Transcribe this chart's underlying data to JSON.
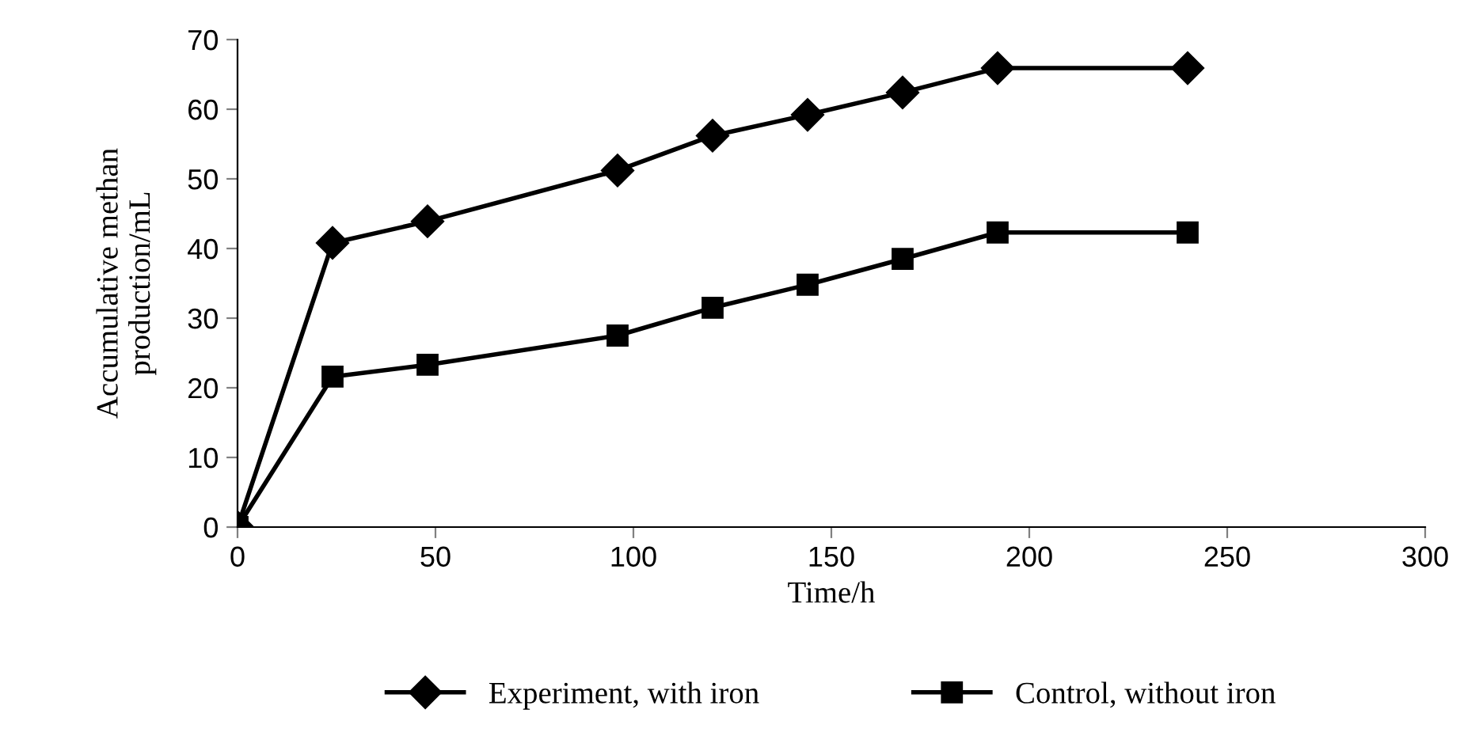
{
  "chart_data": {
    "type": "line",
    "xlabel": "Time/h",
    "ylabel": "Accumulative methan\nproduction/mL",
    "xlim": [
      0,
      300
    ],
    "xticks": [
      0,
      50,
      100,
      150,
      200,
      250,
      300
    ],
    "ylim": [
      0,
      70
    ],
    "yticks": [
      0,
      10,
      20,
      30,
      40,
      50,
      60,
      70
    ],
    "grid": false,
    "legend": "bottom",
    "line_style": "solid",
    "series": [
      {
        "name": "Experiment, with iron",
        "color": "#000000",
        "marker": "diamond",
        "x": [
          0,
          24,
          48,
          96,
          120,
          144,
          168,
          192,
          240
        ],
        "values": [
          0,
          40.8,
          43.9,
          51.2,
          56.2,
          59.2,
          62.4,
          65.9,
          65.9
        ]
      },
      {
        "name": "Control, without iron",
        "color": "#000000",
        "marker": "square",
        "x": [
          0,
          24,
          48,
          96,
          120,
          144,
          168,
          192,
          240
        ],
        "values": [
          0,
          21.6,
          23.3,
          27.5,
          31.5,
          34.8,
          38.5,
          42.3,
          42.3
        ]
      }
    ]
  }
}
